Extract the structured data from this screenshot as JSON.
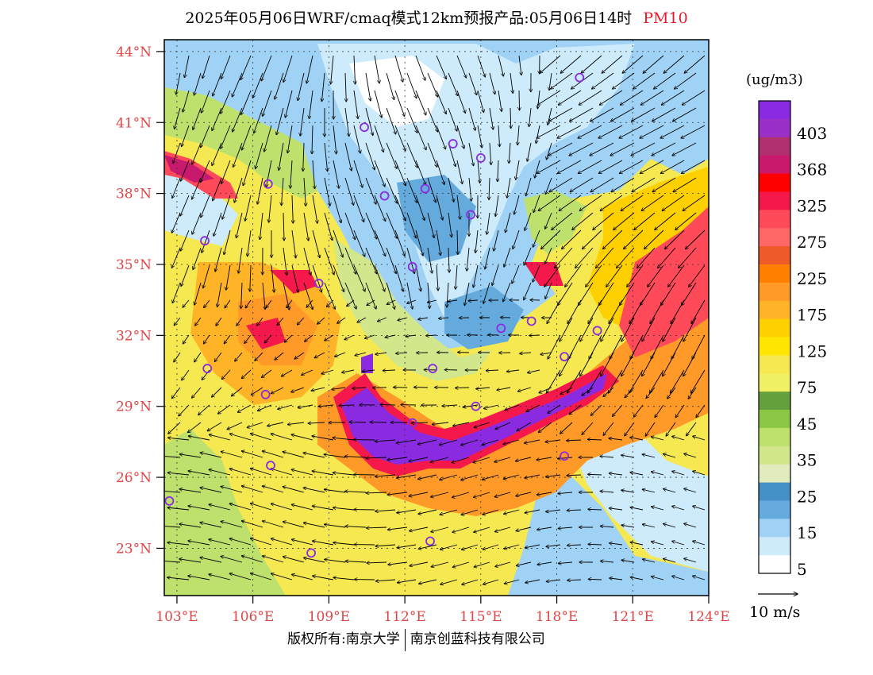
{
  "title": {
    "main": "2025年05月06日WRF/cmaq模式12km预报产品:05月06日14时",
    "product": "PM10"
  },
  "axes": {
    "lat_labels": [
      "44°N",
      "41°N",
      "38°N",
      "35°N",
      "32°N",
      "29°N",
      "26°N",
      "23°N"
    ],
    "lon_labels": [
      "103°E",
      "106°E",
      "109°E",
      "112°E",
      "115°E",
      "118°E",
      "121°E",
      "124°E"
    ],
    "lat_range": [
      21,
      44.5
    ],
    "lon_range": [
      102.5,
      124
    ],
    "lat_values": [
      44,
      41,
      38,
      35,
      32,
      29,
      26,
      23
    ],
    "lon_values": [
      103,
      106,
      109,
      112,
      115,
      118,
      121,
      124
    ]
  },
  "colorbar": {
    "unit": "(ug/m3)",
    "labels": [
      "403",
      "368",
      "325",
      "275",
      "225",
      "175",
      "125",
      "75",
      "45",
      "35",
      "25",
      "15",
      "5"
    ],
    "colors_top_to_bottom": [
      "#8a2be2",
      "#9b30c8",
      "#b03070",
      "#c8196e",
      "#ff0000",
      "#f5194b",
      "#ff4a5a",
      "#ff6666",
      "#f05a28",
      "#ff7f00",
      "#ff9a28",
      "#ffb428",
      "#ffd000",
      "#ffe600",
      "#f5e850",
      "#f0f064",
      "#64a03c",
      "#8cc846",
      "#bee16e",
      "#d2e68c",
      "#e1ebbe",
      "#4690c8",
      "#64aadc",
      "#a0d2f5",
      "#cdebfa",
      "#ffffff"
    ]
  },
  "wind": {
    "reference_label": "10 m/s",
    "reference_speed": 10
  },
  "cities": [
    {
      "lon": 118.9,
      "lat": 42.9
    },
    {
      "lon": 110.4,
      "lat": 40.8
    },
    {
      "lon": 113.9,
      "lat": 40.1
    },
    {
      "lon": 115.0,
      "lat": 39.5
    },
    {
      "lon": 106.6,
      "lat": 38.4
    },
    {
      "lon": 111.2,
      "lat": 37.9
    },
    {
      "lon": 112.8,
      "lat": 38.2
    },
    {
      "lon": 114.6,
      "lat": 37.1
    },
    {
      "lon": 104.1,
      "lat": 36.0
    },
    {
      "lon": 112.3,
      "lat": 34.9
    },
    {
      "lon": 108.6,
      "lat": 34.2
    },
    {
      "lon": 117.0,
      "lat": 32.6
    },
    {
      "lon": 115.8,
      "lat": 32.3
    },
    {
      "lon": 119.6,
      "lat": 32.2
    },
    {
      "lon": 118.3,
      "lat": 31.1
    },
    {
      "lon": 104.2,
      "lat": 30.6
    },
    {
      "lon": 113.1,
      "lat": 30.6
    },
    {
      "lon": 106.5,
      "lat": 29.5
    },
    {
      "lon": 114.8,
      "lat": 29.0
    },
    {
      "lon": 112.3,
      "lat": 28.3
    },
    {
      "lon": 106.7,
      "lat": 26.5
    },
    {
      "lon": 118.3,
      "lat": 26.9
    },
    {
      "lon": 102.7,
      "lat": 25.0
    },
    {
      "lon": 108.3,
      "lat": 22.8
    },
    {
      "lon": 113.0,
      "lat": 23.3
    }
  ],
  "copyright": {
    "left": "版权所有:南京大学",
    "right": "南京创蓝科技有限公司"
  }
}
